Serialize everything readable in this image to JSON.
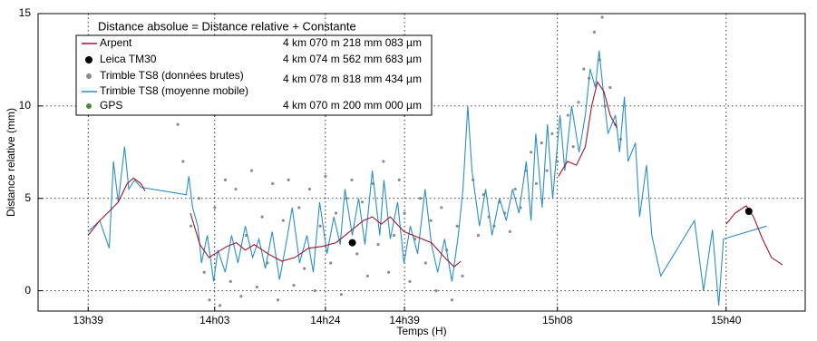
{
  "chart_data": {
    "type": "line",
    "legend_title": "Distance absolue = Distance relative + Constante",
    "xlabel": "Temps (H)",
    "ylabel": "Distance relative (mm)",
    "xlim": [
      809.5,
      955
    ],
    "xticks": [
      {
        "value": 819,
        "label": "13h39"
      },
      {
        "value": 843,
        "label": "14h03"
      },
      {
        "value": 864,
        "label": "14h24"
      },
      {
        "value": 879,
        "label": "14h39"
      },
      {
        "value": 908,
        "label": "15h08"
      },
      {
        "value": 940,
        "label": "15h40"
      }
    ],
    "ylim": [
      -1.1,
      15
    ],
    "yticks": [
      0,
      5,
      10,
      15
    ],
    "grid": true,
    "legend": "upper left",
    "series": [
      {
        "name": "Arpent",
        "mode": "line",
        "color": "#a3142c",
        "constant": "4 km 070 m 218 mm 083 µm",
        "x": [
          819,
          821.2,
          823,
          824.7,
          826.4,
          827.6,
          829,
          829.8,
          null,
          838.4,
          840.2,
          841.9,
          843.6,
          845.3,
          847.1,
          848.8,
          850.5,
          853.1,
          855.7,
          858.2,
          860.8,
          863.4,
          866,
          868.6,
          871.2,
          872.9,
          874.6,
          876.3,
          878.9,
          881.5,
          884.1,
          886.6,
          888.4,
          889.7,
          null,
          908.2,
          909.9,
          911.6,
          913.3,
          914.5,
          915.6,
          916.8,
          918,
          919.3,
          null,
          940,
          941.7,
          943.8,
          945.2,
          946.9,
          948.6,
          950.7
        ],
        "values": [
          3.0,
          3.8,
          4.3,
          4.8,
          5.8,
          6.1,
          5.8,
          5.4,
          null,
          4.2,
          2.5,
          1.8,
          2.1,
          2.4,
          2.6,
          2.2,
          2.5,
          2.0,
          1.6,
          1.8,
          2.3,
          2.4,
          2.6,
          3.2,
          3.8,
          4.0,
          3.6,
          4.0,
          3.2,
          2.9,
          2.6,
          1.8,
          1.3,
          1.6,
          null,
          6.2,
          7.0,
          6.8,
          7.8,
          10.0,
          11.3,
          10.8,
          9.5,
          8.8,
          null,
          3.6,
          4.2,
          4.6,
          4.0,
          2.8,
          1.8,
          1.4
        ]
      },
      {
        "name": "Leica TM30",
        "mode": "markers",
        "color": "#000000",
        "constant": "4 km 074 m 562 mm 683 µm",
        "x": [
          869.1,
          944.3
        ],
        "values": [
          2.6,
          4.3
        ]
      },
      {
        "name": "Trimble TS8 (données brutes)",
        "mode": "markers",
        "color": "#8c8c8c",
        "constant": "4 km 078 m 818 mm 434 µm",
        "x": [
          836,
          837,
          838.5,
          840,
          841,
          842,
          843,
          844,
          845,
          846,
          847,
          848,
          849,
          850,
          851,
          852,
          853,
          854,
          855,
          856,
          857,
          858,
          859,
          860,
          861,
          862,
          863,
          864,
          865,
          866,
          867,
          868,
          869,
          870,
          871,
          872,
          873,
          874,
          875,
          876,
          877,
          878,
          879,
          880,
          881,
          882,
          883,
          884,
          885,
          886,
          887,
          888,
          889,
          890,
          892,
          893,
          894,
          895,
          896,
          897,
          898,
          899,
          900,
          901,
          902,
          903,
          904,
          905,
          906,
          907,
          908,
          910,
          911,
          912,
          913,
          914,
          915,
          916,
          916.5,
          917,
          918,
          919,
          920
        ],
        "values": [
          9.0,
          7.0,
          3.5,
          5.0,
          1.0,
          -0.5,
          4.5,
          -0.8,
          6.0,
          0.5,
          5.5,
          -0.3,
          3.0,
          6.5,
          0.2,
          4.0,
          1.5,
          5.8,
          -0.5,
          3.8,
          6.0,
          0.3,
          4.5,
          1.2,
          5.5,
          0.0,
          3.5,
          6.2,
          1.5,
          4.2,
          -0.2,
          5.0,
          6.0,
          2.0,
          4.8,
          0.8,
          5.8,
          2.5,
          7.0,
          1.0,
          3.0,
          6.0,
          4.2,
          0.5,
          2.8,
          5.0,
          1.5,
          3.8,
          0.0,
          4.5,
          2.2,
          -0.5,
          3.5,
          0.8,
          6.0,
          3.0,
          5.2,
          4.0,
          3.5,
          4.8,
          4.2,
          3.2,
          5.5,
          4.5,
          6.5,
          7.5,
          5.8,
          8.0,
          6.5,
          8.5,
          7.0,
          9.5,
          7.8,
          10.2,
          12.0,
          11.5,
          14.0,
          12.5,
          14.8,
          10.0,
          11.0,
          9.0,
          8.2
        ]
      },
      {
        "name": "Trimble TS8 (moyenne mobile)",
        "mode": "line",
        "color": "#2a8fc6",
        "x": [
          819,
          821.2,
          823,
          823.8,
          824.7,
          825.9,
          826.7,
          827.8,
          829,
          837.6,
          838.1,
          838.8,
          839.8,
          840.5,
          841.6,
          842.8,
          843.6,
          845,
          846.2,
          847.4,
          848.8,
          850.2,
          851.4,
          852.6,
          853.9,
          855.3,
          856.5,
          857.7,
          859.1,
          860.5,
          861.7,
          862.9,
          864.3,
          865.6,
          866.8,
          867.7,
          869.1,
          870.3,
          871.5,
          872.9,
          874.3,
          875.1,
          876.3,
          877.7,
          878.9,
          880.1,
          881.5,
          882.9,
          884.1,
          885.3,
          886.6,
          888,
          889.2,
          890.1,
          891,
          891.8,
          893.2,
          894.4,
          895.6,
          897,
          898.3,
          899.5,
          900.7,
          902.1,
          903,
          903.9,
          905.1,
          906.1,
          907.1,
          908.5,
          909.4,
          910.7,
          912.1,
          913.3,
          914.2,
          915.2,
          915.9,
          916.8,
          917.6,
          919,
          919.8,
          920.7,
          921.4,
          922.8,
          923.6,
          924.9,
          925.9,
          927.6,
          934,
          935.7,
          937.4,
          938.6,
          939.5,
          947.7
        ],
        "values": [
          3.2,
          3.8,
          2.3,
          7.0,
          4.8,
          7.8,
          5.5,
          6.0,
          5.6,
          5.2,
          6.2,
          4.5,
          3.5,
          1.5,
          3.0,
          0.5,
          2.2,
          1.0,
          3.0,
          1.5,
          3.5,
          1.8,
          2.8,
          1.2,
          3.2,
          0.6,
          2.5,
          4.5,
          1.5,
          3.0,
          1.0,
          4.8,
          2.0,
          4.0,
          2.5,
          5.5,
          3.0,
          5.0,
          2.5,
          6.5,
          3.0,
          6.0,
          2.8,
          4.8,
          1.5,
          3.5,
          2.0,
          5.5,
          2.5,
          1.0,
          2.8,
          0.5,
          3.0,
          5.5,
          10.0,
          6.5,
          3.5,
          5.5,
          3.0,
          5.0,
          3.8,
          5.5,
          4.2,
          7.0,
          3.8,
          8.5,
          4.5,
          9.0,
          5.0,
          9.5,
          6.5,
          10.0,
          7.5,
          9.5,
          12.0,
          11.0,
          13.0,
          10.5,
          8.5,
          9.5,
          7.5,
          10.5,
          7.0,
          8.0,
          4.0,
          6.8,
          3.0,
          0.8,
          3.8,
          0.0,
          3.3,
          -0.8,
          2.8,
          3.5
        ]
      },
      {
        "name": "GPS",
        "mode": "markers",
        "color": "#4a8a3c",
        "constant": "4 km 070 m 200 mm 000 µm",
        "x": [],
        "values": []
      }
    ]
  }
}
